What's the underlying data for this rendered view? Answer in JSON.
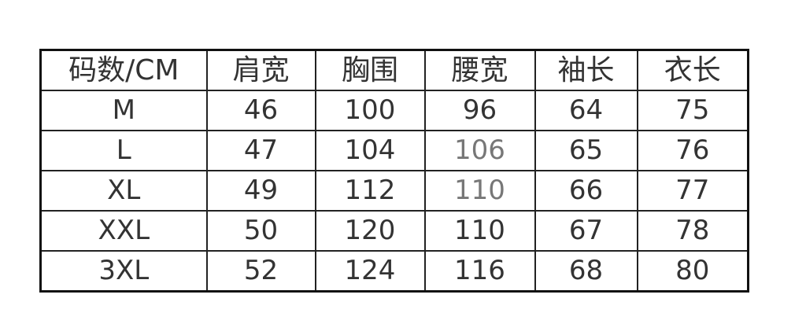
{
  "table": {
    "headers": [
      "码数/CM",
      "肩宽",
      "胸围",
      "腰宽",
      "袖长",
      "衣长"
    ],
    "rows": [
      [
        "M",
        "46",
        "100",
        "96",
        "64",
        "75"
      ],
      [
        "L",
        "47",
        "104",
        "106",
        "65",
        "76"
      ],
      [
        "XL",
        "49",
        "112",
        "110",
        "66",
        "77"
      ],
      [
        "XXL",
        "50",
        "120",
        "110",
        "67",
        "78"
      ],
      [
        "3XL",
        "52",
        "124",
        "116",
        "68",
        "80"
      ]
    ]
  }
}
